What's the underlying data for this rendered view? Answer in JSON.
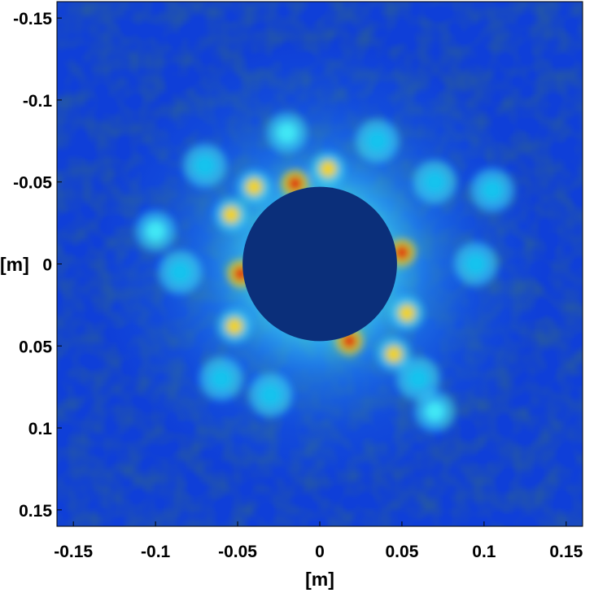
{
  "chart_data": {
    "type": "heatmap",
    "title": "",
    "xlabel": "[m]",
    "ylabel": "[m]",
    "xlim": [
      -0.16,
      0.16
    ],
    "ylim": [
      -0.16,
      0.16
    ],
    "y_axis_direction": "downward-increasing",
    "x_ticks": [
      -0.15,
      -0.1,
      -0.05,
      0,
      0.05,
      0.1,
      0.15
    ],
    "x_tick_labels": [
      "-0.15",
      "-0.1",
      "-0.05",
      "0",
      "0.05",
      "0.1",
      "0.15"
    ],
    "y_ticks": [
      -0.15,
      -0.1,
      -0.05,
      0,
      0.05,
      0.1,
      0.15
    ],
    "y_tick_labels": [
      "-0.15",
      "-0.1",
      "-0.05",
      "0",
      "0.05",
      "0.1",
      "0.15"
    ],
    "colormap": "jet",
    "colors": {
      "background": "#0f3fd8",
      "occluder": "#0b2f7a",
      "hot": "#e0140f",
      "warm": "#f3d21b",
      "mid": "#19c3ee",
      "cyan": "#3fe7f5"
    },
    "masked_disk": {
      "center": [
        0,
        0
      ],
      "radius": 0.047
    },
    "bright_ring_radius": [
      0.047,
      0.085
    ],
    "hotspots": [
      {
        "x": -0.015,
        "y": -0.049,
        "level": "hot"
      },
      {
        "x": 0.018,
        "y": 0.047,
        "level": "hot"
      },
      {
        "x": -0.048,
        "y": 0.006,
        "level": "hot"
      },
      {
        "x": 0.05,
        "y": -0.007,
        "level": "hot"
      },
      {
        "x": -0.04,
        "y": -0.047,
        "level": "warm"
      },
      {
        "x": 0.045,
        "y": 0.055,
        "level": "warm"
      },
      {
        "x": 0.053,
        "y": 0.03,
        "level": "warm"
      },
      {
        "x": -0.054,
        "y": -0.03,
        "level": "warm"
      },
      {
        "x": 0.005,
        "y": -0.058,
        "level": "warm"
      },
      {
        "x": -0.052,
        "y": 0.038,
        "level": "warm"
      },
      {
        "x": -0.07,
        "y": -0.06,
        "level": "mid"
      },
      {
        "x": 0.07,
        "y": -0.05,
        "level": "mid"
      },
      {
        "x": 0.06,
        "y": 0.07,
        "level": "mid"
      },
      {
        "x": -0.06,
        "y": 0.07,
        "level": "mid"
      },
      {
        "x": 0.035,
        "y": -0.075,
        "level": "mid"
      },
      {
        "x": -0.03,
        "y": 0.08,
        "level": "mid"
      },
      {
        "x": 0.095,
        "y": 0.0,
        "level": "mid"
      },
      {
        "x": -0.085,
        "y": 0.005,
        "level": "mid"
      },
      {
        "x": 0.105,
        "y": -0.045,
        "level": "mid"
      },
      {
        "x": -0.1,
        "y": -0.02,
        "level": "cyan"
      },
      {
        "x": 0.07,
        "y": 0.09,
        "level": "cyan"
      },
      {
        "x": -0.02,
        "y": -0.08,
        "level": "cyan"
      }
    ]
  }
}
